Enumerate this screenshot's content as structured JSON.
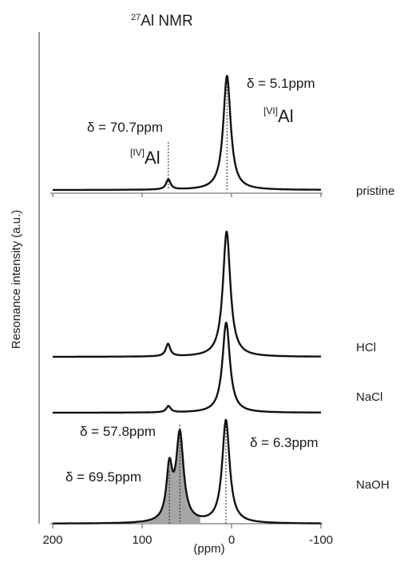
{
  "chart_data": {
    "type": "line",
    "title": {
      "sup": "27",
      "text": "Al NMR"
    },
    "xlabel": "(ppm)",
    "ylabel": "Resonance intensity (a.u.)",
    "xlim": [
      200,
      -100
    ],
    "x_reversed": true,
    "xticks": [
      200,
      100,
      0,
      -100
    ],
    "grid": false,
    "series": [
      {
        "name": "pristine",
        "peaks": [
          {
            "ppm": 70.7,
            "height": 0.09,
            "width": 3
          },
          {
            "ppm": 5.1,
            "height": 1.0,
            "width": 5
          }
        ]
      },
      {
        "name": "HCl",
        "peaks": [
          {
            "ppm": 71.0,
            "height": 0.1,
            "width": 3
          },
          {
            "ppm": 5.5,
            "height": 1.0,
            "width": 5
          }
        ]
      },
      {
        "name": "NaCl",
        "peaks": [
          {
            "ppm": 70.5,
            "height": 0.07,
            "width": 3
          },
          {
            "ppm": 6.0,
            "height": 1.0,
            "width": 5
          }
        ]
      },
      {
        "name": "NaOH",
        "peaks": [
          {
            "ppm": 69.5,
            "height": 0.5,
            "width": 4
          },
          {
            "ppm": 57.8,
            "height": 0.85,
            "width": 5
          },
          {
            "ppm": 6.3,
            "height": 1.0,
            "width": 5
          }
        ],
        "shaded_range": [
          100,
          35
        ]
      }
    ],
    "annotations": [
      {
        "text": "δ = 5.1ppm",
        "marker_ppm": 5.1,
        "series": "pristine"
      },
      {
        "sup": "[VI]",
        "text": "Al"
      },
      {
        "text": "δ = 70.7ppm",
        "marker_ppm": 70.7,
        "series": "pristine"
      },
      {
        "sup": "[IV]",
        "text": "Al"
      },
      {
        "text": "δ = 57.8ppm",
        "marker_ppm": 57.8,
        "series": "NaOH"
      },
      {
        "text": "δ = 6.3ppm",
        "marker_ppm": 6.3,
        "series": "NaOH"
      },
      {
        "text": "δ = 69.5ppm",
        "marker_ppm": 69.5,
        "series": "NaOH"
      }
    ],
    "colors": {
      "line": "#111111",
      "fill": "#a6a6a6",
      "axis": "#555555"
    }
  }
}
